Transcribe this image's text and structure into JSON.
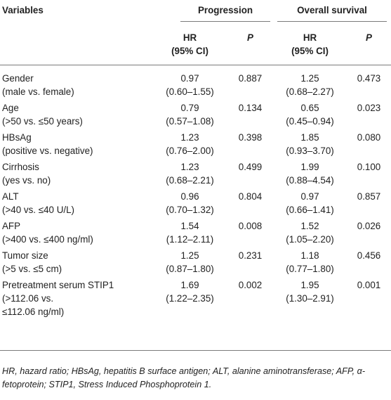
{
  "header": {
    "variables": "Variables",
    "progression": "Progression",
    "overall_survival": "Overall survival",
    "hr_line1": "HR",
    "hr_line2": "(95% CI)",
    "p": "P"
  },
  "rows": [
    {
      "name": "Gender",
      "sub": "(male vs. female)",
      "prog_hr": "0.97",
      "prog_ci": "(0.60–1.55)",
      "prog_p": "0.887",
      "os_hr": "1.25",
      "os_ci": "(0.68–2.27)",
      "os_p": "0.473"
    },
    {
      "name": "Age",
      "sub": "(>50 vs. ≤50 years)",
      "prog_hr": "0.79",
      "prog_ci": "(0.57–1.08)",
      "prog_p": "0.134",
      "os_hr": "0.65",
      "os_ci": "(0.45–0.94)",
      "os_p": "0.023"
    },
    {
      "name": "HBsAg",
      "sub": "(positive vs. negative)",
      "prog_hr": "1.23",
      "prog_ci": "(0.76–2.00)",
      "prog_p": "0.398",
      "os_hr": "1.85",
      "os_ci": "(0.93–3.70)",
      "os_p": "0.080"
    },
    {
      "name": "Cirrhosis",
      "sub": "(yes vs. no)",
      "prog_hr": "1.23",
      "prog_ci": "(0.68–2.21)",
      "prog_p": "0.499",
      "os_hr": "1.99",
      "os_ci": "(0.88–4.54)",
      "os_p": "0.100"
    },
    {
      "name": "ALT",
      "sub": "(>40 vs. ≤40 U/L)",
      "prog_hr": "0.96",
      "prog_ci": "(0.70–1.32)",
      "prog_p": "0.804",
      "os_hr": "0.97",
      "os_ci": "(0.66–1.41)",
      "os_p": "0.857"
    },
    {
      "name": "AFP",
      "sub": "(>400 vs. ≤400 ng/ml)",
      "prog_hr": "1.54",
      "prog_ci": "(1.12–2.11)",
      "prog_p": "0.008",
      "os_hr": "1.52",
      "os_ci": "(1.05–2.20)",
      "os_p": "0.026"
    },
    {
      "name": "Tumor size",
      "sub": "(>5 vs. ≤5 cm)",
      "prog_hr": "1.25",
      "prog_ci": "(0.87–1.80)",
      "prog_p": "0.231",
      "os_hr": "1.18",
      "os_ci": "(0.77–1.80)",
      "os_p": "0.456"
    },
    {
      "name": "Pretreatment serum STIP1",
      "sub": "(>112.06 vs.",
      "sub2": "≤112.06 ng/ml)",
      "prog_hr": "1.69",
      "prog_ci": "(1.22–2.35)",
      "prog_p": "0.002",
      "os_hr": "1.95",
      "os_ci": "(1.30–2.91)",
      "os_p": "0.001"
    }
  ],
  "footnote": "HR, hazard ratio; HBsAg, hepatitis B surface antigen; ALT, alanine aminotransferase; AFP, α-fetoprotein; STIP1, Stress Induced Phosphoprotein 1."
}
